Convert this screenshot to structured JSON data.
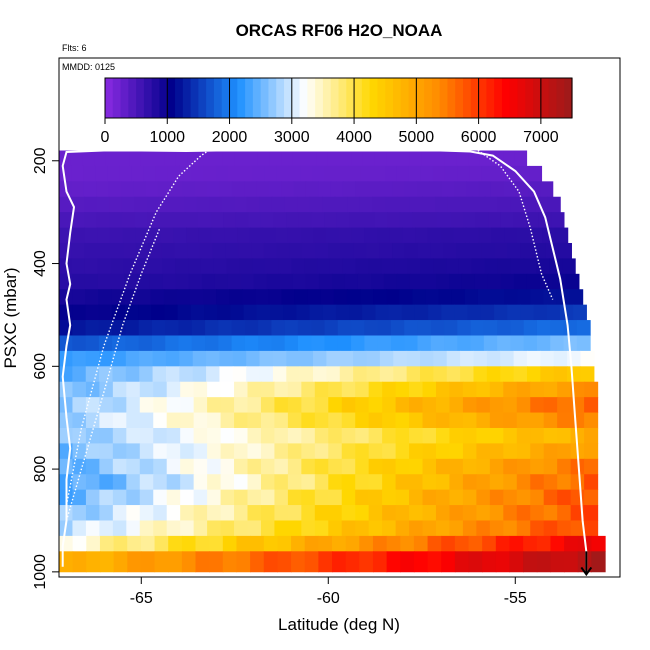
{
  "chart_data": {
    "type": "heatmap",
    "title": "ORCAS RF06 H2O_NOAA",
    "note_flights": "Flts: 6",
    "note_date": "MMDD: 0125",
    "xlabel": "Latitude (deg N)",
    "ylabel": "PSXC (mbar)",
    "xlim": [
      -67.2,
      -52.2
    ],
    "ylim": [
      1010,
      0
    ],
    "x_ticks": [
      -65,
      -60,
      -55
    ],
    "x_tick_labels": [
      "-65",
      "-60",
      "-55"
    ],
    "y_ticks": [
      200,
      400,
      600,
      800,
      1000
    ],
    "y_tick_labels": [
      "200",
      "400",
      "600",
      "800",
      "1000"
    ],
    "colorbar": {
      "range": [
        0,
        7500
      ],
      "ticks": [
        0,
        1000,
        2000,
        3000,
        4000,
        5000,
        6000,
        7000
      ],
      "tick_labels": [
        "0",
        "1000",
        "2000",
        "3000",
        "4000",
        "5000",
        "6000",
        "7000"
      ],
      "colors": [
        "#8a2be2",
        "#00008b",
        "#1e90ff",
        "#ffffff",
        "#ffd700",
        "#ff8c00",
        "#ff0000",
        "#9b1b1b"
      ]
    },
    "heatmap_rows": [
      {
        "p_top": 180,
        "p_bottom": 210,
        "x_end": -54.7,
        "v_left": 250,
        "v_right": 250
      },
      {
        "p_top": 210,
        "p_bottom": 240,
        "x_end": -54.3,
        "v_left": 250,
        "v_right": 300
      },
      {
        "p_top": 240,
        "p_bottom": 270,
        "x_end": -54.0,
        "v_left": 300,
        "v_right": 400
      },
      {
        "p_top": 270,
        "p_bottom": 300,
        "x_end": -53.8,
        "v_left": 400,
        "v_right": 500
      },
      {
        "p_top": 300,
        "p_bottom": 330,
        "x_end": -53.7,
        "v_left": 500,
        "v_right": 600
      },
      {
        "p_top": 330,
        "p_bottom": 360,
        "x_end": -53.6,
        "v_left": 600,
        "v_right": 750
      },
      {
        "p_top": 360,
        "p_bottom": 390,
        "x_end": -53.5,
        "v_left": 650,
        "v_right": 800
      },
      {
        "p_top": 390,
        "p_bottom": 420,
        "x_end": -53.4,
        "v_left": 700,
        "v_right": 900
      },
      {
        "p_top": 420,
        "p_bottom": 450,
        "x_end": -53.3,
        "v_left": 750,
        "v_right": 1000
      },
      {
        "p_top": 450,
        "p_bottom": 480,
        "x_end": -53.2,
        "v_left": 900,
        "v_right": 1200
      },
      {
        "p_top": 480,
        "p_bottom": 510,
        "x_end": -53.1,
        "v_left": 1000,
        "v_right": 1500
      },
      {
        "p_top": 510,
        "p_bottom": 540,
        "x_end": -53.0,
        "v_left": 1200,
        "v_right": 1900
      },
      {
        "p_top": 540,
        "p_bottom": 570,
        "x_end": -53.0,
        "v_left": 1700,
        "v_right": 2600
      },
      {
        "p_top": 570,
        "p_bottom": 600,
        "x_end": -52.9,
        "v_left": 2200,
        "v_right": 3200
      },
      {
        "p_top": 600,
        "p_bottom": 630,
        "x_end": -52.9,
        "v_left": 2400,
        "v_right": 4600
      },
      {
        "p_top": 630,
        "p_bottom": 660,
        "x_end": -52.8,
        "v_left": 2500,
        "v_right": 5300
      },
      {
        "p_top": 660,
        "p_bottom": 690,
        "x_end": -52.8,
        "v_left": 2600,
        "v_right": 5800
      },
      {
        "p_top": 690,
        "p_bottom": 720,
        "x_end": -52.8,
        "v_left": 2700,
        "v_right": 5500
      },
      {
        "p_top": 720,
        "p_bottom": 750,
        "x_end": -52.8,
        "v_left": 2600,
        "v_right": 4900
      },
      {
        "p_top": 750,
        "p_bottom": 780,
        "x_end": -52.8,
        "v_left": 2500,
        "v_right": 5200
      },
      {
        "p_top": 780,
        "p_bottom": 810,
        "x_end": -52.8,
        "v_left": 2400,
        "v_right": 5600
      },
      {
        "p_top": 810,
        "p_bottom": 840,
        "x_end": -52.8,
        "v_left": 2200,
        "v_right": 5800
      },
      {
        "p_top": 840,
        "p_bottom": 870,
        "x_end": -52.8,
        "v_left": 2400,
        "v_right": 5900
      },
      {
        "p_top": 870,
        "p_bottom": 900,
        "x_end": -52.8,
        "v_left": 2600,
        "v_right": 5900
      },
      {
        "p_top": 900,
        "p_bottom": 930,
        "x_end": -52.8,
        "v_left": 2800,
        "v_right": 6000
      },
      {
        "p_top": 930,
        "p_bottom": 960,
        "x_end": -52.6,
        "v_left": 3300,
        "v_right": 6700
      },
      {
        "p_top": 960,
        "p_bottom": 1000,
        "x_end": -52.6,
        "v_left": 4700,
        "v_right": 7300
      }
    ],
    "flight_track": [
      {
        "lat": -67.1,
        "p": 990
      },
      {
        "lat": -67.1,
        "p": 950
      },
      {
        "lat": -67.0,
        "p": 900
      },
      {
        "lat": -67.0,
        "p": 820
      },
      {
        "lat": -66.9,
        "p": 760
      },
      {
        "lat": -67.0,
        "p": 700
      },
      {
        "lat": -67.1,
        "p": 620
      },
      {
        "lat": -67.0,
        "p": 560
      },
      {
        "lat": -66.9,
        "p": 520
      },
      {
        "lat": -67.0,
        "p": 470
      },
      {
        "lat": -66.9,
        "p": 440
      },
      {
        "lat": -67.0,
        "p": 400
      },
      {
        "lat": -66.9,
        "p": 340
      },
      {
        "lat": -66.8,
        "p": 290
      },
      {
        "lat": -67.0,
        "p": 260
      },
      {
        "lat": -67.1,
        "p": 210
      },
      {
        "lat": -67.0,
        "p": 183
      },
      {
        "lat": -66.0,
        "p": 180
      },
      {
        "lat": -65.0,
        "p": 180
      },
      {
        "lat": -63.8,
        "p": 181
      },
      {
        "lat": -63.0,
        "p": 180
      },
      {
        "lat": -62.0,
        "p": 180
      },
      {
        "lat": -60.0,
        "p": 180
      },
      {
        "lat": -58.0,
        "p": 180
      },
      {
        "lat": -57.0,
        "p": 180
      },
      {
        "lat": -56.2,
        "p": 182
      },
      {
        "lat": -55.6,
        "p": 190
      },
      {
        "lat": -55.0,
        "p": 220
      },
      {
        "lat": -54.5,
        "p": 260
      },
      {
        "lat": -54.2,
        "p": 310
      },
      {
        "lat": -54.0,
        "p": 370
      },
      {
        "lat": -53.8,
        "p": 430
      },
      {
        "lat": -53.6,
        "p": 520
      },
      {
        "lat": -53.5,
        "p": 600
      },
      {
        "lat": -53.4,
        "p": 700
      },
      {
        "lat": -53.3,
        "p": 800
      },
      {
        "lat": -53.2,
        "p": 900
      },
      {
        "lat": -53.1,
        "p": 960
      },
      {
        "lat": -53.1,
        "p": 1000
      }
    ],
    "flight_track_2": [
      {
        "lat": -67.0,
        "p": 870
      },
      {
        "lat": -66.6,
        "p": 720
      },
      {
        "lat": -66.0,
        "p": 560
      },
      {
        "lat": -65.3,
        "p": 420
      },
      {
        "lat": -64.6,
        "p": 300
      },
      {
        "lat": -64.0,
        "p": 230
      },
      {
        "lat": -63.4,
        "p": 190
      },
      {
        "lat": -63.2,
        "p": 180
      }
    ],
    "flight_track_3": [
      {
        "lat": -56.0,
        "p": 180
      },
      {
        "lat": -55.4,
        "p": 210
      },
      {
        "lat": -54.9,
        "p": 260
      },
      {
        "lat": -54.6,
        "p": 330
      },
      {
        "lat": -54.3,
        "p": 420
      },
      {
        "lat": -54.0,
        "p": 470
      }
    ],
    "flight_track_4": [
      {
        "lat": -67.0,
        "p": 900
      },
      {
        "lat": -66.6,
        "p": 800
      },
      {
        "lat": -66.0,
        "p": 650
      },
      {
        "lat": -65.5,
        "p": 520
      },
      {
        "lat": -65.0,
        "p": 420
      },
      {
        "lat": -64.5,
        "p": 330
      }
    ],
    "end_marker": {
      "lat": -53.1,
      "p_from": 960,
      "p_to": 1005
    }
  }
}
